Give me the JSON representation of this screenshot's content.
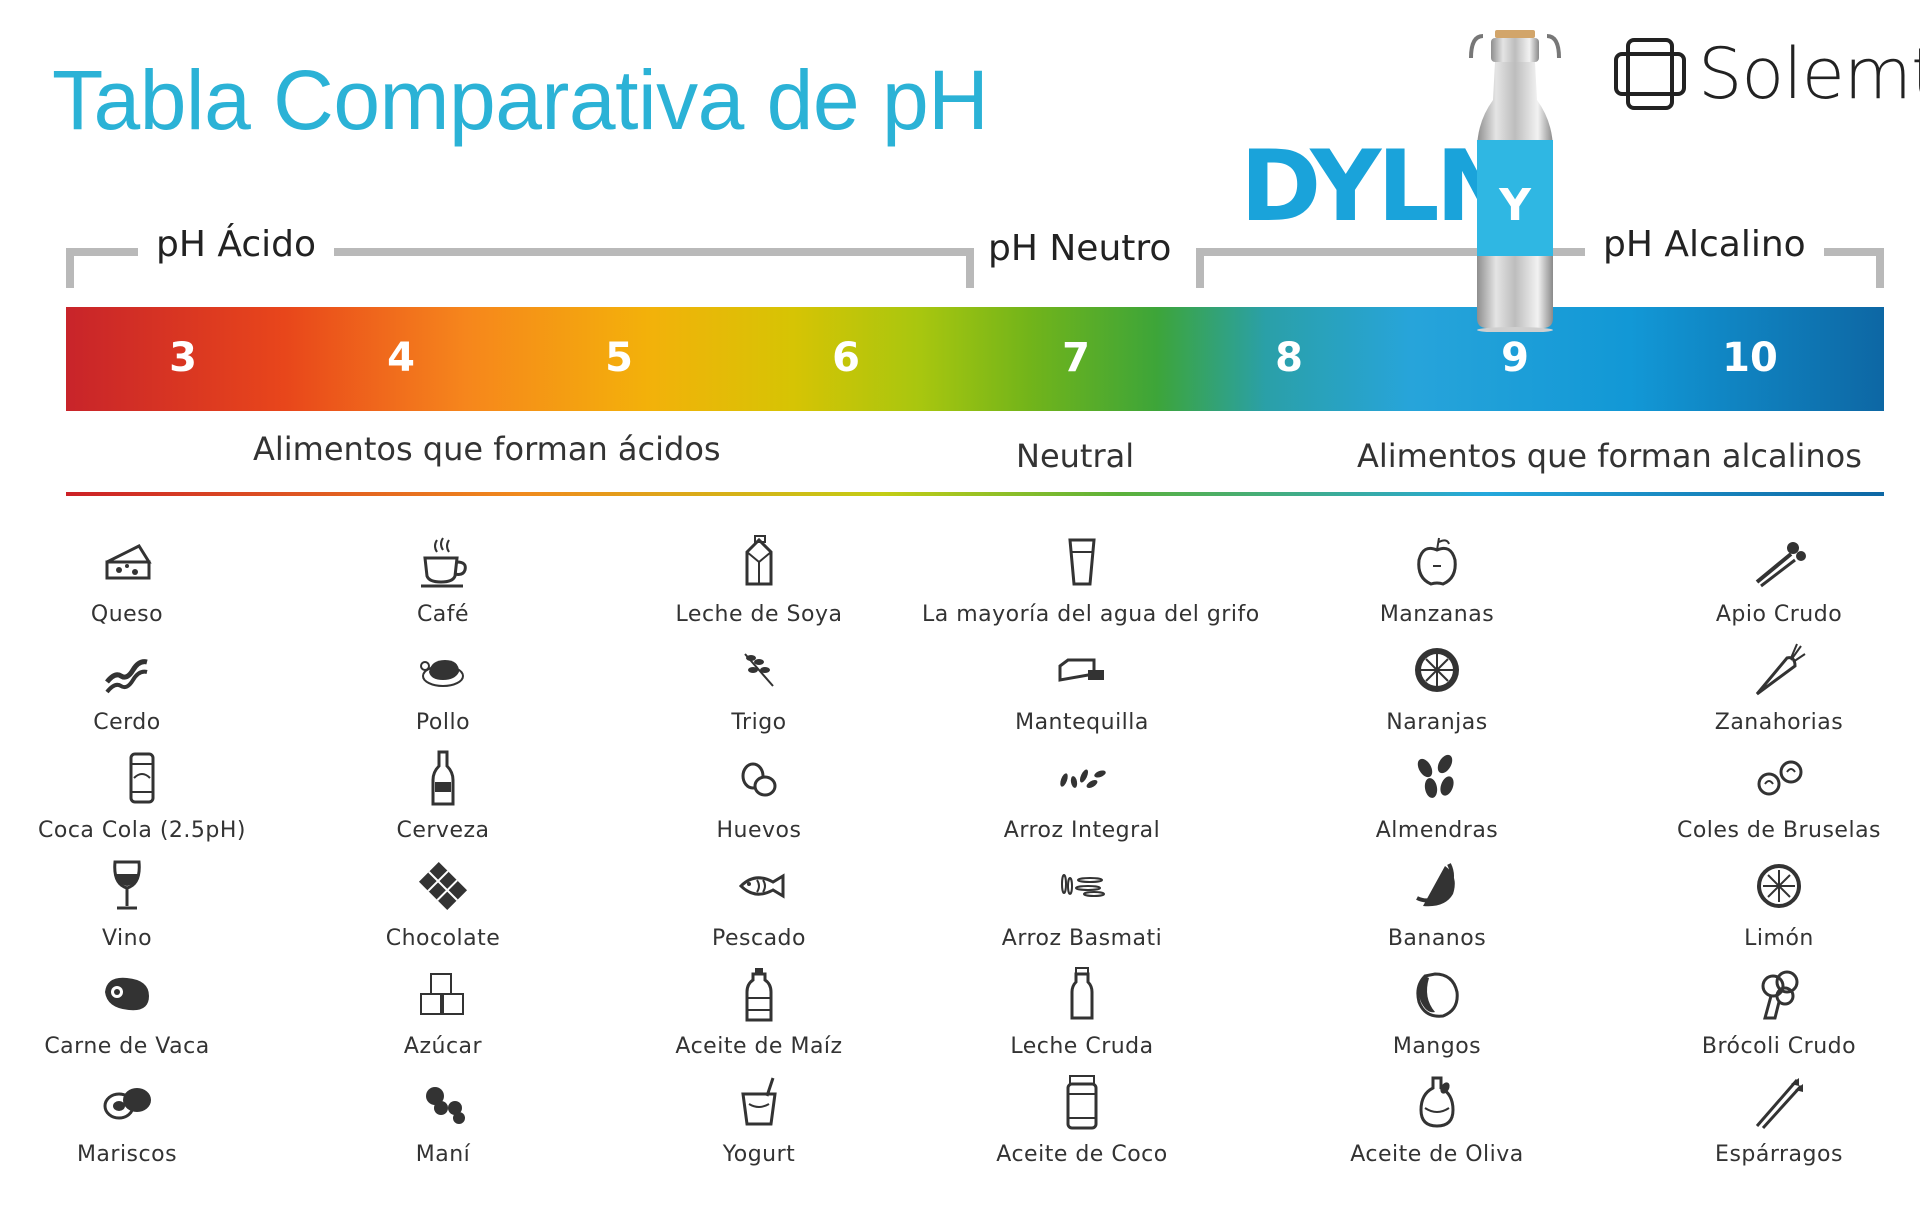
{
  "title": "Tabla Comparativa de pH",
  "brands": {
    "solemt": "Solemt",
    "dyln": "DYLN",
    "bottle_mark": "Y"
  },
  "ranges": {
    "acid": "pH Ácido",
    "neutral": "pH Neutro",
    "alkaline": "pH Alcalino"
  },
  "scale": {
    "values": [
      "3",
      "4",
      "5",
      "6",
      "7",
      "8",
      "9",
      "10"
    ]
  },
  "groups": {
    "acid": "Alimentos que forman ácidos",
    "neutral": "Neutral",
    "alkaline": "Alimentos que forman alcalinos"
  },
  "colors": {
    "title": "#2bb2d6",
    "dyln": "#1aa3da",
    "acid": "#c8242a",
    "neutral": "#3da539",
    "alkaline": "#0d67a4"
  },
  "columns": [
    {
      "items": [
        {
          "label": "Queso",
          "icon": "cheese-icon"
        },
        {
          "label": "Cerdo",
          "icon": "bacon-icon"
        },
        {
          "label": "Coca Cola (2.5pH)",
          "icon": "soda-can-icon"
        },
        {
          "label": "Vino",
          "icon": "wine-glass-icon"
        },
        {
          "label": "Carne de Vaca",
          "icon": "steak-icon"
        },
        {
          "label": "Mariscos",
          "icon": "shellfish-icon"
        }
      ]
    },
    {
      "items": [
        {
          "label": "Café",
          "icon": "coffee-cup-icon"
        },
        {
          "label": "Pollo",
          "icon": "roast-chicken-icon"
        },
        {
          "label": "Cerveza",
          "icon": "beer-bottle-icon"
        },
        {
          "label": "Chocolate",
          "icon": "chocolate-bar-icon"
        },
        {
          "label": "Azúcar",
          "icon": "sugar-cubes-icon"
        },
        {
          "label": "Maní",
          "icon": "peanut-icon"
        }
      ]
    },
    {
      "items": [
        {
          "label": "Leche de Soya",
          "icon": "milk-carton-icon"
        },
        {
          "label": "Trigo",
          "icon": "wheat-icon"
        },
        {
          "label": "Huevos",
          "icon": "eggs-icon"
        },
        {
          "label": "Pescado",
          "icon": "fish-icon"
        },
        {
          "label": "Aceite de Maíz",
          "icon": "oil-bottle-icon"
        },
        {
          "label": "Yogurt",
          "icon": "yogurt-cup-icon"
        }
      ]
    },
    {
      "items": [
        {
          "label": "La mayoría del agua del grifo",
          "icon": "water-glass-icon"
        },
        {
          "label": "Mantequilla",
          "icon": "butter-icon"
        },
        {
          "label": "Arroz Integral",
          "icon": "brown-rice-icon"
        },
        {
          "label": "Arroz Basmati",
          "icon": "basmati-rice-icon"
        },
        {
          "label": "Leche Cruda",
          "icon": "milk-bottle-icon"
        },
        {
          "label": "Aceite de Coco",
          "icon": "coconut-oil-jar-icon"
        }
      ]
    },
    {
      "items": [
        {
          "label": "Manzanas",
          "icon": "apple-icon"
        },
        {
          "label": "Naranjas",
          "icon": "orange-slice-icon"
        },
        {
          "label": "Almendras",
          "icon": "almonds-icon"
        },
        {
          "label": "Bananos",
          "icon": "banana-icon"
        },
        {
          "label": "Mangos",
          "icon": "mango-icon"
        },
        {
          "label": "Aceite de Oliva",
          "icon": "olive-oil-icon"
        }
      ]
    },
    {
      "items": [
        {
          "label": "Apio Crudo",
          "icon": "celery-icon"
        },
        {
          "label": "Zanahorias",
          "icon": "carrot-icon"
        },
        {
          "label": "Coles de Bruselas",
          "icon": "brussels-sprouts-icon"
        },
        {
          "label": "Limón",
          "icon": "lemon-slice-icon"
        },
        {
          "label": "Brócoli Crudo",
          "icon": "broccoli-icon"
        },
        {
          "label": "Espárragos",
          "icon": "asparagus-icon"
        }
      ]
    }
  ]
}
